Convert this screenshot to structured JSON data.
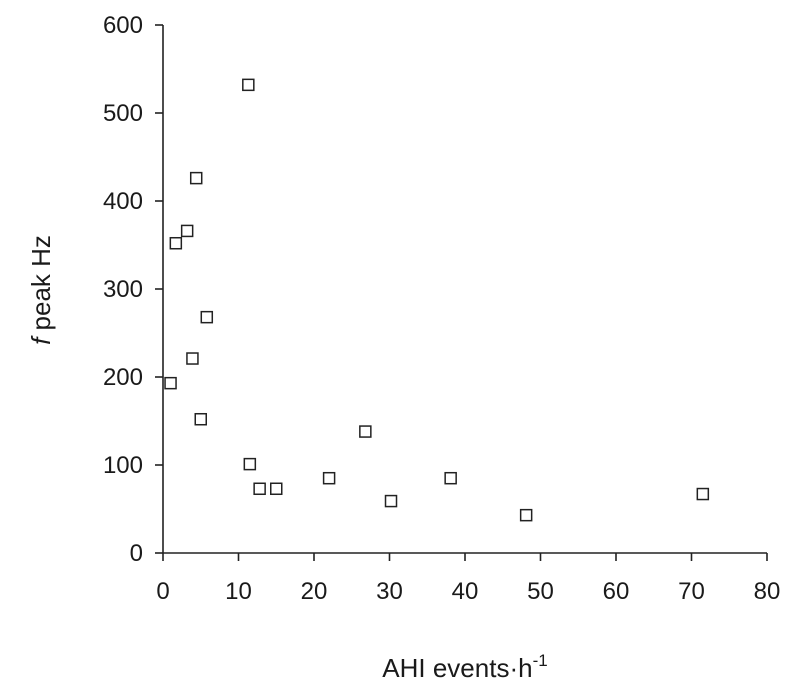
{
  "chart_data": {
    "type": "scatter",
    "title": "",
    "xlabel": {
      "main": "AHI  events·h",
      "sup": "-1"
    },
    "ylabel": {
      "italic": "f",
      "rest": " peak  Hz"
    },
    "xlim": [
      0,
      80
    ],
    "ylim": [
      0,
      600
    ],
    "xticks": [
      0,
      10,
      20,
      30,
      40,
      50,
      60,
      70,
      80
    ],
    "yticks": [
      0,
      100,
      200,
      300,
      400,
      500,
      600
    ],
    "grid": false,
    "legend": "none",
    "marker": "open-square",
    "colors": {
      "marker_stroke": "#222222",
      "axis": "#222222"
    },
    "points": [
      {
        "x": 1.0,
        "y": 193
      },
      {
        "x": 1.7,
        "y": 352
      },
      {
        "x": 3.2,
        "y": 366
      },
      {
        "x": 3.9,
        "y": 221
      },
      {
        "x": 4.4,
        "y": 426
      },
      {
        "x": 5.0,
        "y": 152
      },
      {
        "x": 5.8,
        "y": 268
      },
      {
        "x": 11.3,
        "y": 532
      },
      {
        "x": 11.5,
        "y": 101
      },
      {
        "x": 12.8,
        "y": 73
      },
      {
        "x": 15.0,
        "y": 73
      },
      {
        "x": 22.0,
        "y": 85
      },
      {
        "x": 26.8,
        "y": 138
      },
      {
        "x": 30.2,
        "y": 59
      },
      {
        "x": 38.1,
        "y": 85
      },
      {
        "x": 48.1,
        "y": 43
      },
      {
        "x": 71.5,
        "y": 67
      }
    ]
  }
}
